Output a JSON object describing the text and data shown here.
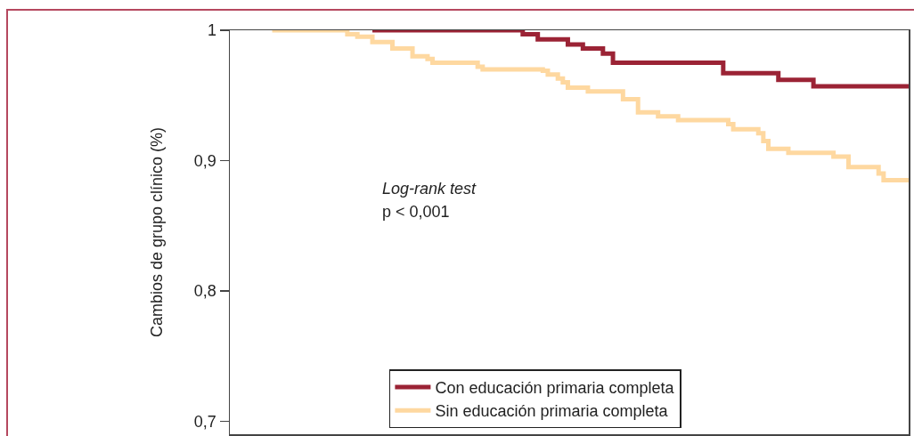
{
  "chart_data": {
    "type": "step",
    "ylabel": "Cambios de grupo clínico (%)",
    "annotations": [
      "Log-rank test",
      "p < 0,001"
    ],
    "categories": [
      null,
      null,
      null,
      null,
      null,
      null,
      null,
      null,
      null,
      null,
      null,
      null,
      null,
      null,
      null,
      null,
      null,
      null,
      null,
      null,
      null,
      null,
      null,
      null,
      null,
      null,
      null,
      null,
      null,
      null,
      null,
      null,
      null,
      null,
      null,
      null,
      null,
      null,
      null,
      null,
      null,
      null,
      null,
      null,
      null,
      null,
      null,
      null,
      null,
      null,
      null,
      null,
      null,
      null,
      null,
      null,
      null,
      null,
      null,
      null,
      null,
      null,
      null,
      null,
      null,
      null,
      null,
      null,
      null,
      null,
      null,
      null,
      null,
      null,
      null,
      null,
      null,
      null,
      null,
      null,
      null,
      null,
      null,
      null,
      null,
      null,
      null,
      null,
      null,
      null,
      null,
      null,
      null,
      null,
      null,
      null,
      null,
      null,
      null,
      null,
      null,
      null,
      null,
      null,
      null,
      null,
      null,
      null,
      null,
      null,
      null,
      null,
      null,
      null,
      null,
      null,
      null,
      null,
      null,
      null,
      null,
      null,
      null,
      null,
      null,
      null,
      null,
      null
    ],
    "series": [
      {
        "name": "Con educación primaria completa",
        "color": "#9b2335",
        "values": [
          null,
          null,
          null,
          null,
          null,
          null,
          null,
          null,
          null,
          null,
          null,
          null,
          null,
          null,
          null,
          null,
          null,
          null,
          null,
          null,
          1,
          1,
          1,
          1,
          1,
          1,
          1,
          1,
          1,
          1,
          1,
          1,
          1,
          1,
          1,
          1,
          1,
          1,
          1,
          1,
          1,
          1,
          1,
          1,
          1,
          1,
          1,
          1,
          1,
          1,
          0.997,
          0.997,
          0.997,
          0.993,
          0.993,
          0.993,
          0.993,
          0.993,
          0.993,
          0.989,
          0.989,
          0.989,
          0.986,
          0.986,
          0.986,
          0.986,
          0.982,
          0.982,
          0.975,
          0.975,
          0.975,
          0.975,
          0.975,
          0.975,
          0.975,
          0.975,
          0.975,
          0.975,
          0.975,
          0.975,
          0.975,
          0.975,
          0.975,
          0.975,
          0.975,
          0.975,
          0.975,
          0.975,
          0.975,
          0.975,
          0.967,
          0.967,
          0.967,
          0.967,
          0.967,
          0.967,
          0.967,
          0.967,
          0.967,
          0.967,
          0.967,
          0.962,
          0.962,
          0.962,
          0.962,
          0.962,
          0.962,
          0.962,
          0.957,
          0.957,
          0.957,
          0.957,
          0.957,
          0.957,
          0.957,
          0.957,
          0.957,
          0.957,
          0.957,
          0.957,
          0.957,
          0.957,
          0.957,
          0.957,
          0.957,
          0.957,
          0.957,
          0.957
        ]
      },
      {
        "name": "Sin educación primaria completa",
        "color": "#fed8a0",
        "values": [
          1,
          1,
          1,
          1,
          1,
          1,
          1,
          1,
          1,
          1,
          1,
          1,
          1,
          1,
          1,
          0.997,
          0.997,
          0.995,
          0.995,
          0.995,
          0.991,
          0.991,
          0.991,
          0.991,
          0.986,
          0.986,
          0.986,
          0.986,
          0.98,
          0.98,
          0.98,
          0.978,
          0.975,
          0.975,
          0.975,
          0.975,
          0.975,
          0.975,
          0.975,
          0.975,
          0.975,
          0.972,
          0.97,
          0.97,
          0.97,
          0.97,
          0.97,
          0.97,
          0.97,
          0.97,
          0.97,
          0.97,
          0.97,
          0.97,
          0.969,
          0.966,
          0.966,
          0.963,
          0.96,
          0.956,
          0.956,
          0.956,
          0.956,
          0.953,
          0.953,
          0.953,
          0.953,
          0.953,
          0.953,
          0.953,
          0.947,
          0.947,
          0.947,
          0.937,
          0.937,
          0.937,
          0.937,
          0.934,
          0.934,
          0.934,
          0.934,
          0.931,
          0.931,
          0.931,
          0.931,
          0.931,
          0.931,
          0.931,
          0.931,
          0.931,
          0.931,
          0.928,
          0.924,
          0.924,
          0.924,
          0.924,
          0.924,
          0.921,
          0.915,
          0.909,
          0.909,
          0.909,
          0.909,
          0.906,
          0.906,
          0.906,
          0.906,
          0.906,
          0.906,
          0.906,
          0.906,
          0.906,
          0.903,
          0.903,
          0.903,
          0.895,
          0.895,
          0.895,
          0.895,
          0.895,
          0.895,
          0.89,
          0.885,
          0.885,
          0.885,
          0.885,
          0.885,
          0.885
        ]
      }
    ],
    "ylim": [
      0.69,
      1
    ],
    "yticks": [
      1,
      {
        "value": 0.9,
        "label": "0,9"
      },
      {
        "value": 0.8,
        "label": "0,8"
      },
      {
        "value": 0.7,
        "label": "0,7"
      }
    ],
    "tick_labels": "y",
    "legend": "bottom"
  }
}
